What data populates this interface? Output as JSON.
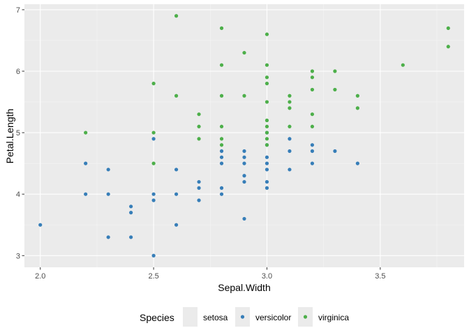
{
  "chart_data": {
    "type": "scatter",
    "xlabel": "Sepal.Width",
    "ylabel": "Petal.Length",
    "xlim": [
      1.93,
      3.87
    ],
    "ylim": [
      2.81,
      7.09
    ],
    "x_ticks": [
      2.0,
      2.5,
      3.0,
      3.5
    ],
    "x_tick_labels": [
      "2.0",
      "2.5",
      "3.0",
      "3.5"
    ],
    "y_ticks": [
      3,
      4,
      5,
      6,
      7
    ],
    "y_tick_labels": [
      "3",
      "4",
      "5",
      "6",
      "7"
    ],
    "grid": true,
    "legend": {
      "title": "Species",
      "placement": "bottom",
      "entries": [
        "setosa",
        "versicolor",
        "virginica"
      ]
    },
    "series": [
      {
        "name": "setosa",
        "color": "#e41a1c",
        "points": []
      },
      {
        "name": "versicolor",
        "color": "#377eb8",
        "points": [
          [
            2.0,
            3.5
          ],
          [
            2.2,
            4.5
          ],
          [
            2.2,
            4.0
          ],
          [
            2.3,
            4.4
          ],
          [
            2.3,
            4.0
          ],
          [
            2.3,
            3.3
          ],
          [
            2.4,
            3.8
          ],
          [
            2.4,
            3.7
          ],
          [
            2.4,
            3.3
          ],
          [
            2.5,
            4.9
          ],
          [
            2.5,
            4.0
          ],
          [
            2.5,
            3.9
          ],
          [
            2.5,
            3.0
          ],
          [
            2.6,
            4.4
          ],
          [
            2.6,
            4.0
          ],
          [
            2.6,
            3.5
          ],
          [
            2.7,
            4.2
          ],
          [
            2.7,
            4.1
          ],
          [
            2.7,
            3.9
          ],
          [
            2.8,
            4.7
          ],
          [
            2.8,
            4.6
          ],
          [
            2.8,
            4.5
          ],
          [
            2.8,
            4.1
          ],
          [
            2.8,
            4.0
          ],
          [
            2.9,
            4.7
          ],
          [
            2.9,
            4.6
          ],
          [
            2.9,
            4.5
          ],
          [
            2.9,
            4.3
          ],
          [
            2.9,
            4.2
          ],
          [
            2.9,
            3.6
          ],
          [
            3.0,
            5.0
          ],
          [
            3.0,
            4.8
          ],
          [
            3.0,
            4.6
          ],
          [
            3.0,
            4.5
          ],
          [
            3.0,
            4.4
          ],
          [
            3.0,
            4.2
          ],
          [
            3.0,
            4.1
          ],
          [
            3.1,
            4.9
          ],
          [
            3.1,
            4.7
          ],
          [
            3.1,
            4.4
          ],
          [
            3.2,
            4.8
          ],
          [
            3.2,
            4.7
          ],
          [
            3.2,
            4.5
          ],
          [
            3.3,
            4.7
          ],
          [
            3.4,
            4.5
          ]
        ]
      },
      {
        "name": "virginica",
        "color": "#4daf4a",
        "points": [
          [
            2.2,
            5.0
          ],
          [
            2.5,
            5.8
          ],
          [
            2.5,
            5.0
          ],
          [
            2.5,
            4.5
          ],
          [
            2.6,
            6.9
          ],
          [
            2.6,
            5.6
          ],
          [
            2.7,
            5.3
          ],
          [
            2.7,
            5.1
          ],
          [
            2.7,
            4.9
          ],
          [
            2.8,
            6.7
          ],
          [
            2.8,
            6.1
          ],
          [
            2.8,
            5.6
          ],
          [
            2.8,
            5.1
          ],
          [
            2.8,
            4.9
          ],
          [
            2.8,
            4.8
          ],
          [
            2.9,
            6.3
          ],
          [
            2.9,
            5.6
          ],
          [
            3.0,
            6.6
          ],
          [
            3.0,
            6.1
          ],
          [
            3.0,
            5.9
          ],
          [
            3.0,
            5.8
          ],
          [
            3.0,
            5.5
          ],
          [
            3.0,
            5.2
          ],
          [
            3.0,
            5.1
          ],
          [
            3.0,
            5.0
          ],
          [
            3.0,
            4.9
          ],
          [
            3.0,
            4.8
          ],
          [
            3.1,
            5.6
          ],
          [
            3.1,
            5.5
          ],
          [
            3.1,
            5.4
          ],
          [
            3.1,
            5.1
          ],
          [
            3.2,
            6.0
          ],
          [
            3.2,
            5.9
          ],
          [
            3.2,
            5.7
          ],
          [
            3.2,
            5.3
          ],
          [
            3.2,
            5.1
          ],
          [
            3.3,
            6.0
          ],
          [
            3.3,
            5.7
          ],
          [
            3.4,
            5.6
          ],
          [
            3.4,
            5.4
          ],
          [
            3.6,
            6.1
          ],
          [
            3.8,
            6.7
          ],
          [
            3.8,
            6.4
          ]
        ]
      }
    ]
  }
}
